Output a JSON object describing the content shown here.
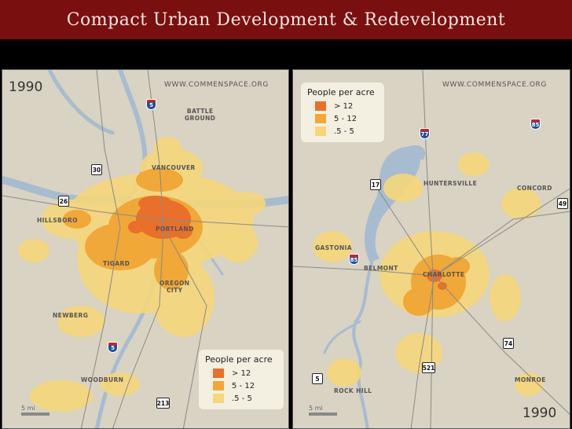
{
  "title": "Compact Urban Development & Redevelopment",
  "colors": {
    "title_bar": "#7a0f0f",
    "land": "#d8d3c2",
    "water": "#a8bcd0",
    "density_high": "#e8702a",
    "density_mid": "#f0a838",
    "density_low": "#f5d77a"
  },
  "left_map": {
    "year": "1990",
    "credit": "WWW.COMMENSPACE.ORG",
    "legend": {
      "title": "People per acre",
      "items": [
        {
          "label": "> 12",
          "color": "#e8702a"
        },
        {
          "label": "5 - 12",
          "color": "#f0a838"
        },
        {
          "label": ".5 - 5",
          "color": "#f5d77a"
        }
      ]
    },
    "scale_label": "5 mi",
    "cities": {
      "battle_ground": "BATTLE\nGROUND",
      "vancouver": "VANCOUVER",
      "hillsboro": "HILLSBORO",
      "portland": "PORTLAND",
      "tigard": "TIGARD",
      "oregon_city": "OREGON\nCITY",
      "newberg": "NEWBERG",
      "woodburn": "WOODBURN"
    },
    "highways": {
      "i5_north": "5",
      "us30": "30",
      "us26": "26",
      "i5_south": "5",
      "or213": "213"
    }
  },
  "right_map": {
    "year": "1990",
    "credit": "WWW.COMMENSPACE.ORG",
    "legend": {
      "title": "People per acre",
      "items": [
        {
          "label": "> 12",
          "color": "#e8702a"
        },
        {
          "label": "5 - 12",
          "color": "#f0a838"
        },
        {
          "label": ".5 - 5",
          "color": "#f5d77a"
        }
      ]
    },
    "scale_label": "5 mi",
    "cities": {
      "huntersville": "HUNTERSVILLE",
      "concord": "CONCORD",
      "gastonia": "GASTONIA",
      "belmont": "BELMONT",
      "charlotte": "CHARLOTTE",
      "monroe": "MONROE",
      "rock_hill": "ROCK HILL"
    },
    "highways": {
      "i77": "77",
      "i85_ne": "85",
      "us17": "17",
      "us49": "49",
      "i85_w": "85",
      "us74": "74",
      "us521": "521",
      "sc5": "5"
    }
  }
}
